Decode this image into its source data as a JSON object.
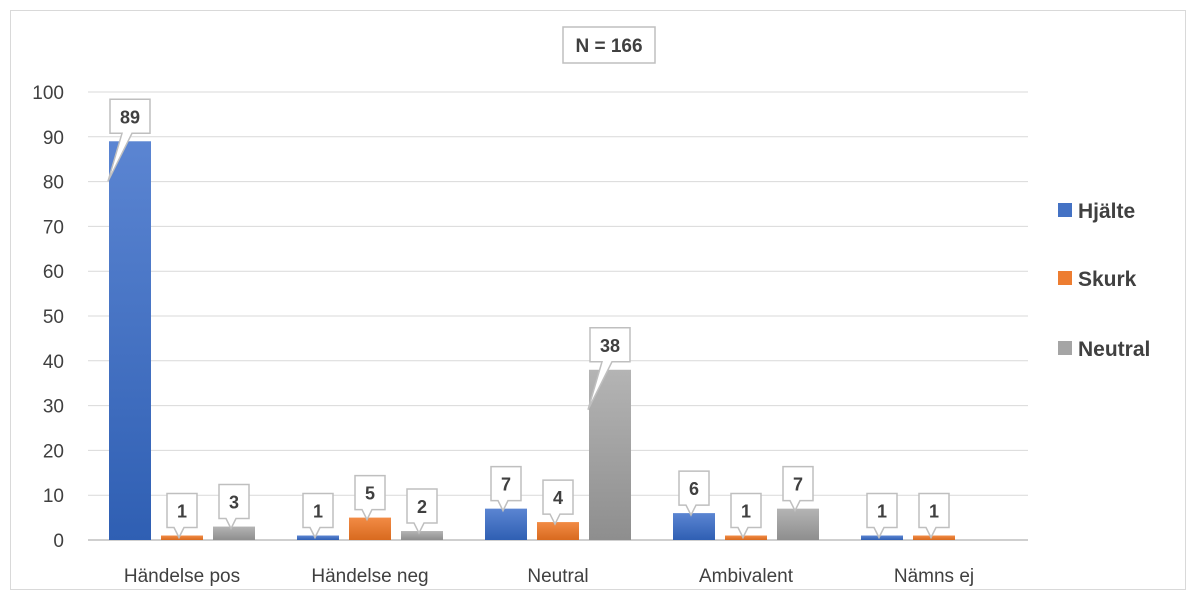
{
  "chart_data": {
    "type": "bar",
    "title": "N = 166",
    "categories": [
      "Händelse pos",
      "Händelse neg",
      "Neutral",
      "Ambivalent",
      "Nämns ej"
    ],
    "series": [
      {
        "name": "Hjälte",
        "values": [
          89,
          1,
          7,
          6,
          1
        ],
        "color": "#4472c4"
      },
      {
        "name": "Skurk",
        "values": [
          1,
          5,
          4,
          1,
          1
        ],
        "color": "#ed7d31"
      },
      {
        "name": "Neutral",
        "values": [
          3,
          2,
          38,
          7,
          null
        ],
        "color": "#a5a5a5"
      }
    ],
    "ylim": [
      0,
      100
    ],
    "yticks": [
      0,
      10,
      20,
      30,
      40,
      50,
      60,
      70,
      80,
      90,
      100
    ],
    "grid": true,
    "legend_position": "right",
    "data_labels": true
  }
}
